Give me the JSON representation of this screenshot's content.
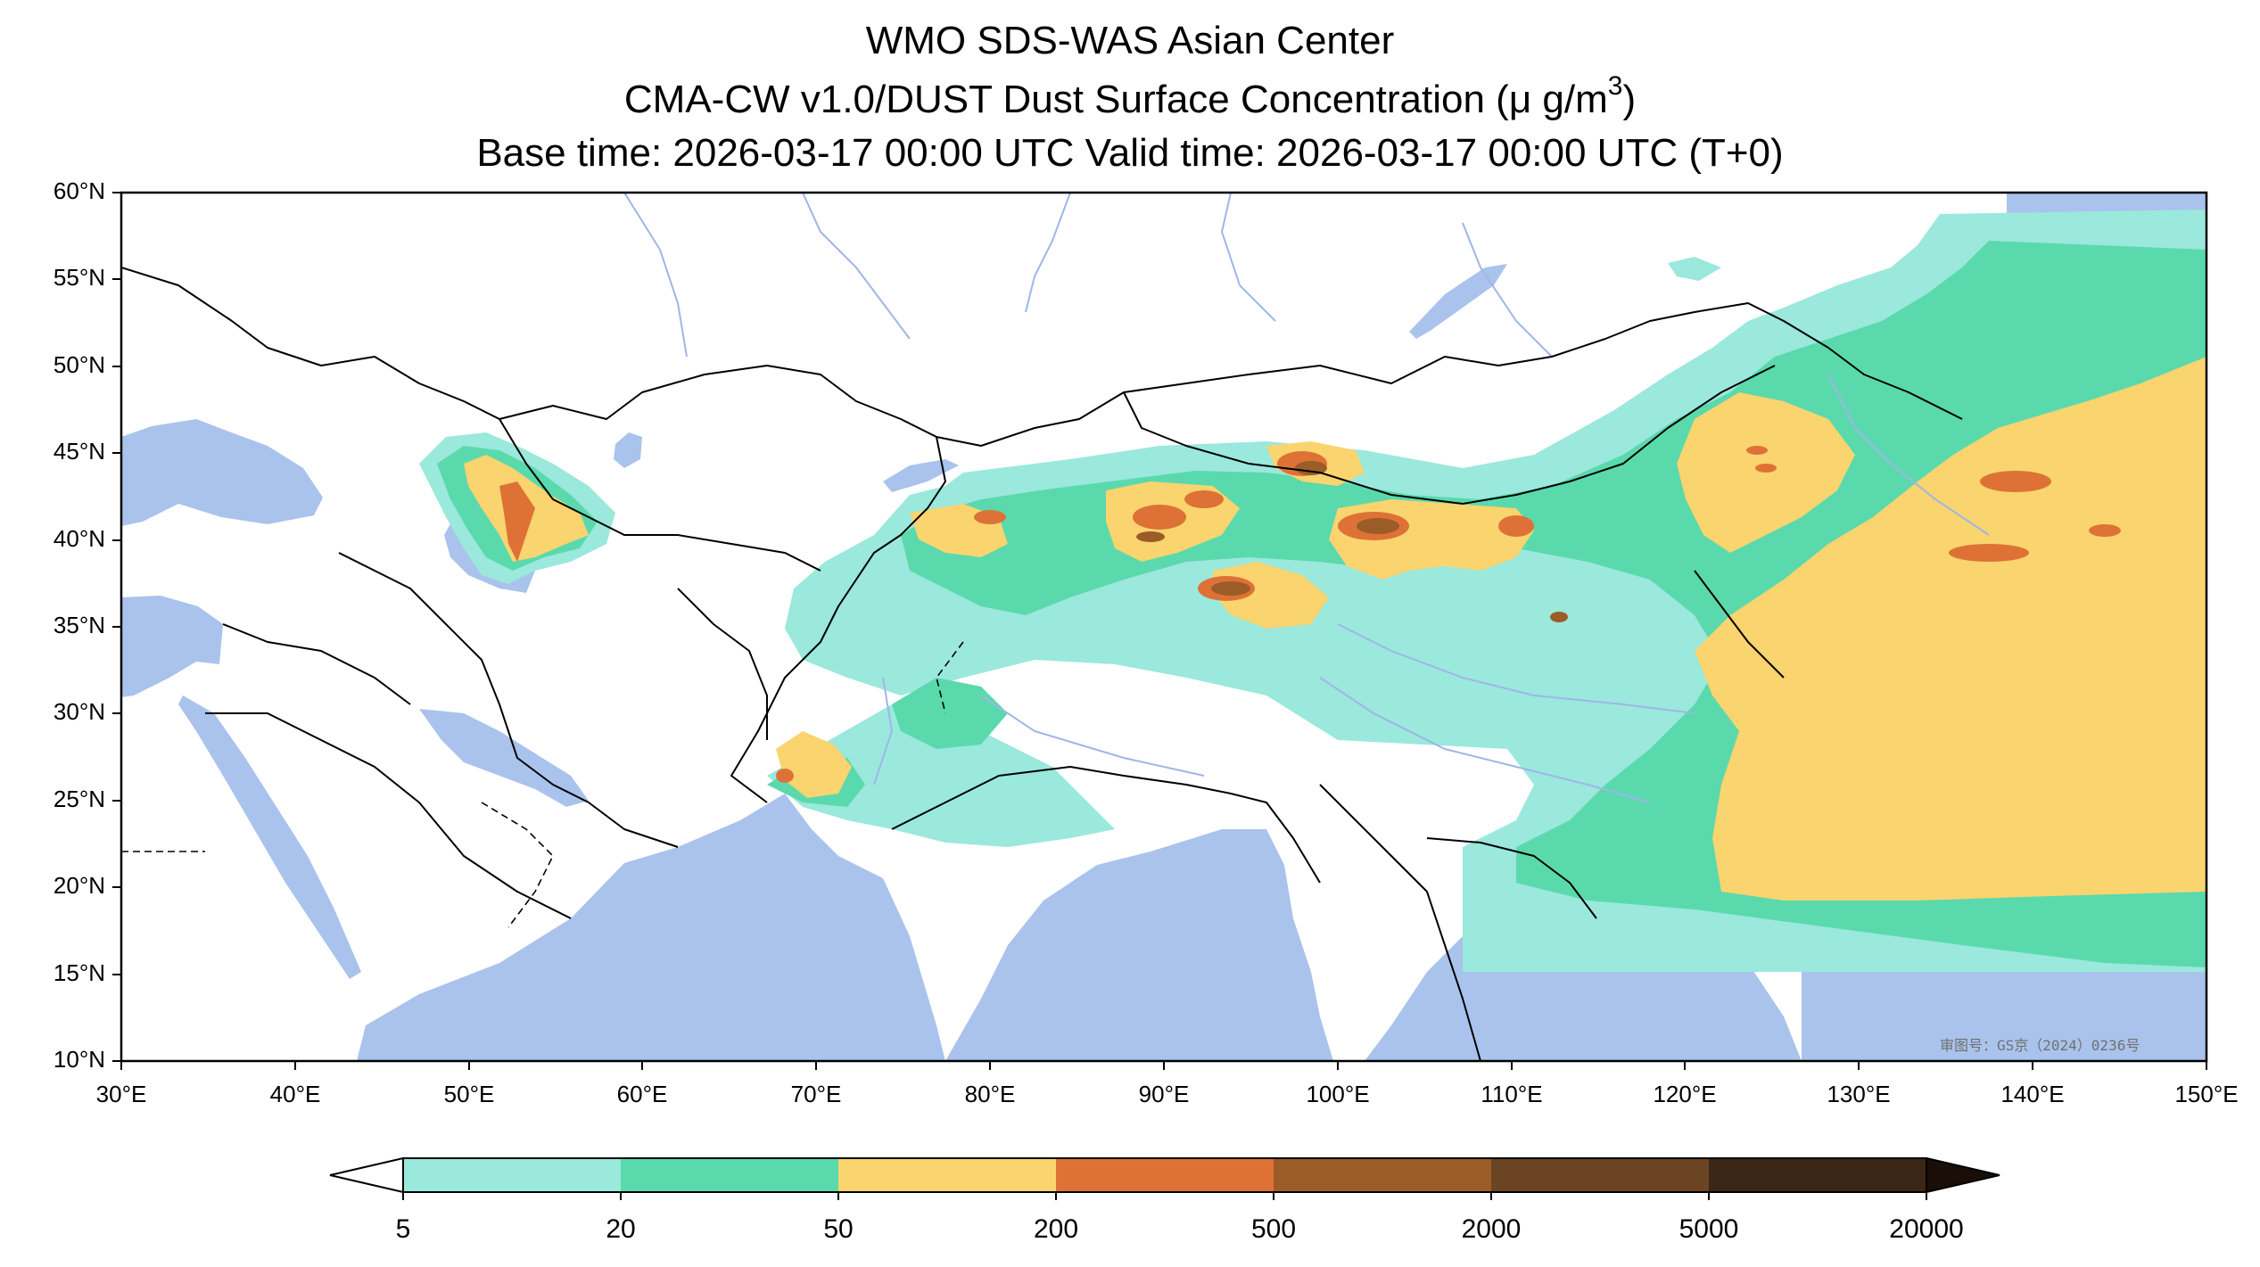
{
  "title": {
    "line1": "WMO SDS-WAS Asian Center",
    "line2_prefix": "CMA-CW v1.0/DUST Dust Surface Concentration (μ g/m",
    "line2_sup": "3",
    "line2_suffix": ")",
    "line3": "Base time: 2026-03-17 00:00 UTC Valid time: 2026-03-17 00:00 UTC (T+0)"
  },
  "map": {
    "lon_range": [
      30,
      150
    ],
    "lat_range": [
      10,
      60
    ],
    "lat_ticks": [
      "10°N",
      "15°N",
      "20°N",
      "25°N",
      "30°N",
      "35°N",
      "40°N",
      "45°N",
      "50°N",
      "55°N",
      "60°N"
    ],
    "lon_ticks": [
      "30°E",
      "40°E",
      "50°E",
      "60°E",
      "70°E",
      "80°E",
      "90°E",
      "100°E",
      "110°E",
      "120°E",
      "130°E",
      "140°E",
      "150°E"
    ],
    "approval_number": "审图号：GS京（2024）0236号",
    "colors": {
      "water": "#a9c3ec",
      "land": "#ffffff",
      "border": "#000000",
      "river": "#9fb6e6"
    }
  },
  "colorbar": {
    "levels": [
      "5",
      "20",
      "50",
      "200",
      "500",
      "2000",
      "5000",
      "20000"
    ],
    "colors": [
      "#9be8dc",
      "#5ad9ad",
      "#f9d46f",
      "#de7236",
      "#9b5c28",
      "#6b4424",
      "#3c2616"
    ],
    "extend": "both",
    "under_color": "#ffffff",
    "over_color": "#1a0f08"
  }
}
